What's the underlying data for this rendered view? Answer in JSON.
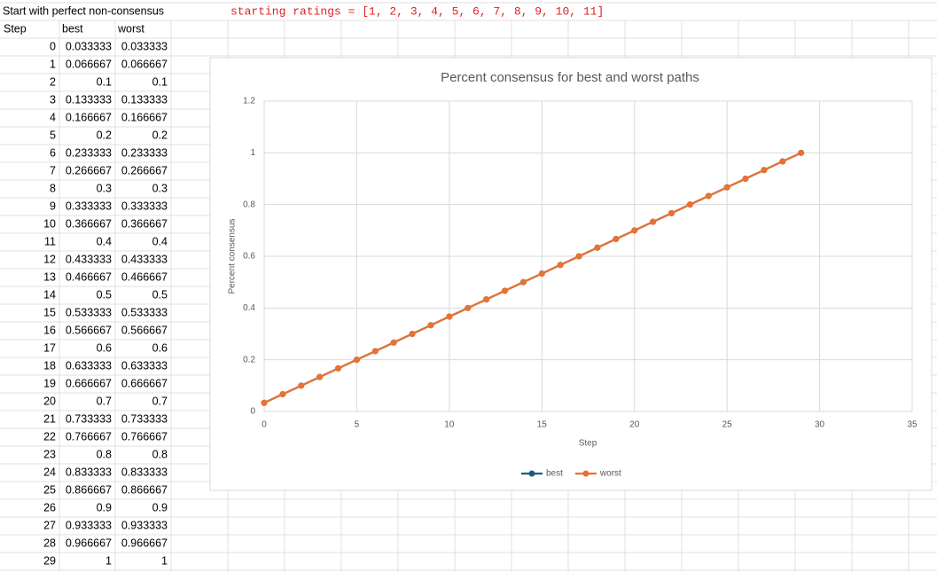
{
  "sheet": {
    "title": "Start with perfect non-consensus",
    "note": "starting ratings = [1, 2, 3, 4, 5, 6, 7, 8, 9, 10, 11]"
  },
  "chart_data": {
    "type": "line",
    "title": "Percent consensus for best and worst paths",
    "xlabel": "Step",
    "ylabel": "Percent consensus",
    "x": [
      0,
      1,
      2,
      3,
      4,
      5,
      6,
      7,
      8,
      9,
      10,
      11,
      12,
      13,
      14,
      15,
      16,
      17,
      18,
      19,
      20,
      21,
      22,
      23,
      24,
      25,
      26,
      27,
      28,
      29
    ],
    "series": [
      {
        "name": "best",
        "color": "#156082",
        "values": [
          0.033333,
          0.066667,
          0.1,
          0.133333,
          0.166667,
          0.2,
          0.233333,
          0.266667,
          0.3,
          0.333333,
          0.366667,
          0.4,
          0.433333,
          0.466667,
          0.5,
          0.533333,
          0.566667,
          0.6,
          0.633333,
          0.666667,
          0.7,
          0.733333,
          0.766667,
          0.8,
          0.833333,
          0.866667,
          0.9,
          0.933333,
          0.966667,
          1
        ]
      },
      {
        "name": "worst",
        "color": "#e97132",
        "values": [
          0.033333,
          0.066667,
          0.1,
          0.133333,
          0.166667,
          0.2,
          0.233333,
          0.266667,
          0.3,
          0.333333,
          0.366667,
          0.4,
          0.433333,
          0.466667,
          0.5,
          0.533333,
          0.566667,
          0.6,
          0.633333,
          0.666667,
          0.7,
          0.733333,
          0.766667,
          0.8,
          0.833333,
          0.866667,
          0.9,
          0.933333,
          0.966667,
          1
        ]
      }
    ],
    "xlim": [
      0,
      35
    ],
    "xticks": [
      0,
      5,
      10,
      15,
      20,
      25,
      30,
      35
    ],
    "ylim": [
      0,
      1.2
    ],
    "yticks": [
      0,
      0.2,
      0.4,
      0.6,
      0.8,
      1,
      1.2
    ],
    "grid": true,
    "legend": "bottom"
  }
}
